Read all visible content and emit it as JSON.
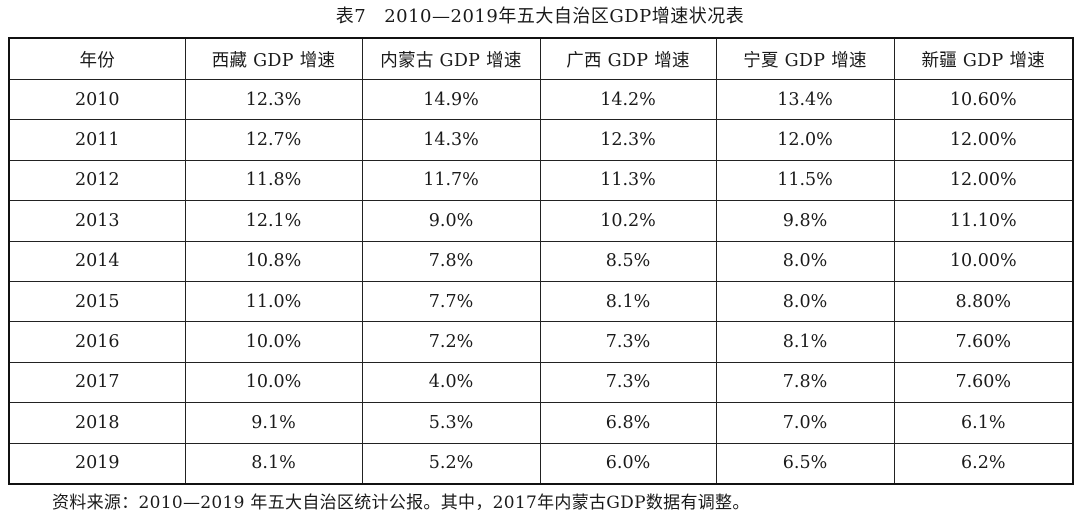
{
  "caption": {
    "number": "表7",
    "title": "2010—2019年五大自治区GDP增速状况表"
  },
  "table": {
    "headers": [
      "年份",
      "西藏 GDP 增速",
      "内蒙古 GDP 增速",
      "广西 GDP 增速",
      "宁夏 GDP 增速",
      "新疆 GDP 增速"
    ],
    "rows": [
      [
        "2010",
        "12.3%",
        "14.9%",
        "14.2%",
        "13.4%",
        "10.60%"
      ],
      [
        "2011",
        "12.7%",
        "14.3%",
        "12.3%",
        "12.0%",
        "12.00%"
      ],
      [
        "2012",
        "11.8%",
        "11.7%",
        "11.3%",
        "11.5%",
        "12.00%"
      ],
      [
        "2013",
        "12.1%",
        "9.0%",
        "10.2%",
        "9.8%",
        "11.10%"
      ],
      [
        "2014",
        "10.8%",
        "7.8%",
        "8.5%",
        "8.0%",
        "10.00%"
      ],
      [
        "2015",
        "11.0%",
        "7.7%",
        "8.1%",
        "8.0%",
        "8.80%"
      ],
      [
        "2016",
        "10.0%",
        "7.2%",
        "7.3%",
        "8.1%",
        "7.60%"
      ],
      [
        "2017",
        "10.0%",
        "4.0%",
        "7.3%",
        "7.8%",
        "7.60%"
      ],
      [
        "2018",
        "9.1%",
        "5.3%",
        "6.8%",
        "7.0%",
        "6.1%"
      ],
      [
        "2019",
        "8.1%",
        "5.2%",
        "6.0%",
        "6.5%",
        "6.2%"
      ]
    ]
  },
  "source_note": "资料来源：2010—2019 年五大自治区统计公报。其中，2017年内蒙古GDP数据有调整。"
}
